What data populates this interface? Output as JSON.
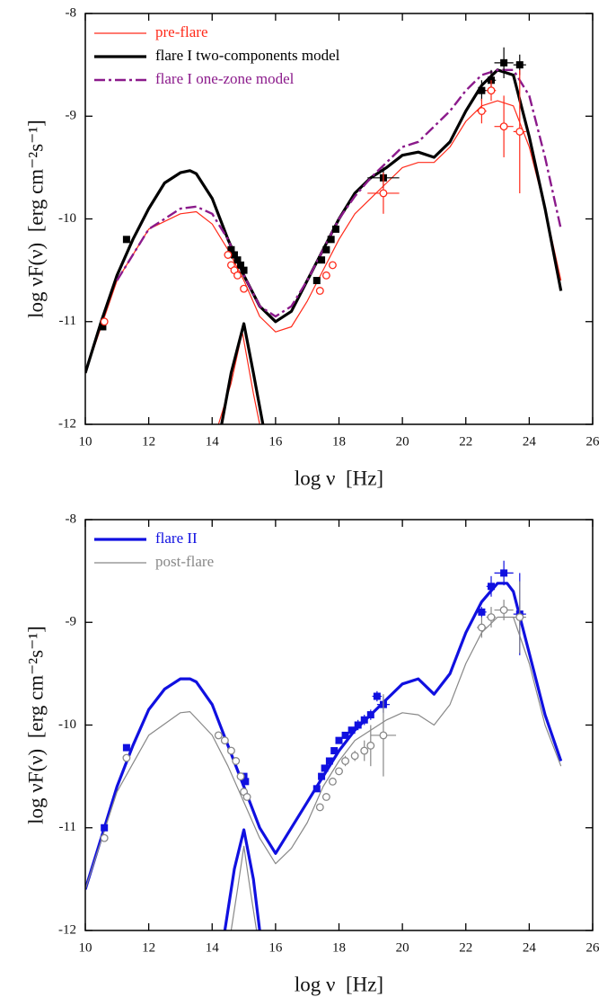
{
  "chart_data": [
    {
      "type": "line",
      "xlabel": "log ν  [Hz]",
      "ylabel": "log νF(ν)  [erg cm⁻²s⁻¹]",
      "xlim": [
        10,
        26
      ],
      "ylim": [
        -12,
        -8
      ],
      "xticks": [
        10,
        12,
        14,
        16,
        18,
        20,
        22,
        24,
        26
      ],
      "yticks": [
        -12,
        -11,
        -10,
        -9,
        -8
      ],
      "legend": "upper left",
      "series": [
        {
          "name": "pre-flare",
          "color": "#ff2a1a",
          "width": 1.2,
          "style": "solid",
          "x": [
            10,
            11,
            12,
            13,
            13.5,
            14,
            14.5,
            15,
            15.5,
            16,
            16.5,
            17,
            17.5,
            18,
            18.5,
            19,
            19.5,
            20,
            20.5,
            21,
            21.5,
            22,
            22.5,
            23,
            23.5,
            24,
            24.5,
            25,
            null,
            14.2,
            14.6,
            14.95,
            15.3,
            15.5
          ],
          "values": [
            -11.5,
            -10.6,
            -10.1,
            -9.95,
            -9.93,
            -10.05,
            -10.3,
            -10.6,
            -10.95,
            -11.1,
            -11.05,
            -10.8,
            -10.5,
            -10.2,
            -9.95,
            -9.8,
            -9.65,
            -9.5,
            -9.45,
            -9.45,
            -9.3,
            -9.05,
            -8.9,
            -8.85,
            -8.9,
            -9.3,
            -9.9,
            -10.6,
            null,
            -12,
            -11.6,
            -11.1,
            -11.7,
            -12
          ]
        },
        {
          "name": "flare I two-components model",
          "color": "#000000",
          "width": 3.2,
          "style": "solid",
          "x": [
            10,
            10.5,
            11,
            11.5,
            12,
            12.5,
            13,
            13.3,
            13.5,
            14,
            14.5,
            15,
            15.5,
            16,
            16.5,
            17,
            17.5,
            18,
            18.5,
            19,
            19.5,
            20,
            20.5,
            21,
            21.5,
            22,
            22.5,
            23,
            23.5,
            24,
            24.5,
            25,
            null,
            14.3,
            14.6,
            15,
            15.3,
            15.6
          ],
          "values": [
            -11.5,
            -11.0,
            -10.55,
            -10.2,
            -9.9,
            -9.65,
            -9.55,
            -9.53,
            -9.56,
            -9.8,
            -10.2,
            -10.55,
            -10.85,
            -11.0,
            -10.9,
            -10.6,
            -10.3,
            -10.0,
            -9.75,
            -9.6,
            -9.5,
            -9.38,
            -9.35,
            -9.4,
            -9.25,
            -8.95,
            -8.7,
            -8.55,
            -8.6,
            -9.2,
            -9.9,
            -10.7,
            null,
            -12,
            -11.5,
            -11.02,
            -11.5,
            -12
          ]
        },
        {
          "name": "flare I one-zone model",
          "color": "#8b1a8b",
          "width": 2.4,
          "style": "dashdot",
          "x": [
            11,
            12,
            13,
            13.5,
            14,
            14.5,
            15,
            15.5,
            16,
            16.5,
            17,
            17.5,
            18,
            18.5,
            19,
            19.5,
            20,
            20.5,
            21,
            21.5,
            22,
            22.5,
            23,
            23.5,
            24,
            24.5,
            25
          ],
          "values": [
            -10.6,
            -10.1,
            -9.9,
            -9.88,
            -9.95,
            -10.2,
            -10.55,
            -10.85,
            -10.95,
            -10.85,
            -10.6,
            -10.3,
            -10.0,
            -9.78,
            -9.6,
            -9.45,
            -9.3,
            -9.25,
            -9.1,
            -8.95,
            -8.75,
            -8.6,
            -8.55,
            -8.55,
            -8.8,
            -9.4,
            -10.1
          ]
        },
        {
          "marker": "square",
          "color": "#000000",
          "fill": "#000000",
          "x": [
            10.55,
            11.3,
            14.6,
            14.7,
            14.8,
            14.9,
            15.0,
            17.3,
            17.45,
            17.6,
            17.75,
            17.9,
            19.4,
            22.5,
            22.8,
            23.2,
            23.7
          ],
          "values": [
            -11.05,
            -10.2,
            -10.3,
            -10.35,
            -10.4,
            -10.45,
            -10.5,
            -10.6,
            -10.4,
            -10.3,
            -10.2,
            -10.1,
            -9.6,
            -8.75,
            -8.65,
            -8.48,
            -8.5
          ],
          "xerr": [
            0,
            0,
            0,
            0,
            0,
            0,
            0,
            0,
            0,
            0,
            0,
            0,
            0.5,
            0.15,
            0.15,
            0.3,
            0.2
          ],
          "yerr": [
            0.03,
            0.03,
            0.03,
            0.03,
            0.03,
            0.03,
            0.03,
            0.03,
            0.03,
            0.03,
            0.03,
            0.03,
            0.1,
            0.1,
            0.1,
            0.15,
            0.1
          ]
        },
        {
          "marker": "circle",
          "color": "#ff2a1a",
          "fill": "#ffffff",
          "x": [
            10.6,
            14.5,
            14.6,
            14.7,
            14.8,
            15.0,
            17.4,
            17.6,
            17.8,
            19.4,
            22.5,
            22.8,
            23.2,
            23.7
          ],
          "values": [
            -11.0,
            -10.35,
            -10.45,
            -10.5,
            -10.55,
            -10.68,
            -10.7,
            -10.55,
            -10.45,
            -9.75,
            -8.95,
            -8.75,
            -9.1,
            -9.15
          ],
          "xerr": [
            0,
            0,
            0,
            0,
            0,
            0,
            0,
            0,
            0,
            0.5,
            0.15,
            0.15,
            0.3,
            0.2
          ],
          "yerr": [
            0.03,
            0.03,
            0.03,
            0.03,
            0.03,
            0.03,
            0.03,
            0.03,
            0.03,
            0.2,
            0.12,
            0.1,
            0.3,
            0.6
          ]
        }
      ]
    },
    {
      "type": "line",
      "xlabel": "log ν  [Hz]",
      "ylabel": "log νF(ν)  [erg cm⁻²s⁻¹]",
      "xlim": [
        10,
        26
      ],
      "ylim": [
        -12,
        -8
      ],
      "xticks": [
        10,
        12,
        14,
        16,
        18,
        20,
        22,
        24,
        26
      ],
      "yticks": [
        -12,
        -11,
        -10,
        -9,
        -8
      ],
      "legend": "upper left",
      "series": [
        {
          "name": "flare II",
          "color": "#1010e0",
          "width": 3.2,
          "style": "solid",
          "x": [
            10,
            10.5,
            11,
            11.5,
            12,
            12.5,
            13,
            13.3,
            13.5,
            14,
            14.5,
            15,
            15.5,
            16,
            16.5,
            17,
            17.5,
            18,
            18.5,
            19,
            19.5,
            20,
            20.5,
            21,
            21.5,
            22,
            22.5,
            23,
            23.3,
            23.5,
            24,
            24.5,
            25,
            null,
            14.4,
            14.7,
            15,
            15.3,
            15.5
          ],
          "values": [
            -11.6,
            -11.1,
            -10.6,
            -10.2,
            -9.85,
            -9.65,
            -9.55,
            -9.55,
            -9.58,
            -9.8,
            -10.2,
            -10.6,
            -11.0,
            -11.25,
            -11.0,
            -10.75,
            -10.5,
            -10.25,
            -10.05,
            -9.9,
            -9.75,
            -9.6,
            -9.55,
            -9.7,
            -9.5,
            -9.1,
            -8.8,
            -8.62,
            -8.62,
            -8.7,
            -9.3,
            -9.9,
            -10.35,
            null,
            -12,
            -11.4,
            -11.02,
            -11.5,
            -12
          ]
        },
        {
          "name": "post-flare",
          "color": "#888888",
          "width": 1.2,
          "style": "solid",
          "x": [
            10,
            11,
            12,
            13,
            13.3,
            14,
            14.5,
            15,
            15.5,
            16,
            16.5,
            17,
            17.5,
            18,
            18.5,
            19,
            19.5,
            20,
            20.5,
            21,
            21.5,
            22,
            22.5,
            23,
            23.5,
            24,
            24.5,
            25,
            null,
            14.6,
            14.8,
            15,
            15.2,
            15.4
          ],
          "values": [
            -11.6,
            -10.65,
            -10.1,
            -9.88,
            -9.87,
            -10.1,
            -10.4,
            -10.75,
            -11.1,
            -11.35,
            -11.2,
            -10.95,
            -10.6,
            -10.35,
            -10.15,
            -10.05,
            -9.95,
            -9.88,
            -9.9,
            -10.0,
            -9.8,
            -9.4,
            -9.1,
            -8.95,
            -8.95,
            -9.4,
            -10.0,
            -10.4,
            null,
            -12,
            -11.6,
            -11.18,
            -11.6,
            -12
          ]
        },
        {
          "marker": "square",
          "color": "#1010e0",
          "fill": "#1010e0",
          "x": [
            10.6,
            11.3,
            15.0,
            15.05,
            17.3,
            17.45,
            17.55,
            17.7,
            17.85,
            18.0,
            18.2,
            18.4,
            18.6,
            18.8,
            19.0,
            19.2,
            19.4,
            22.5,
            22.8,
            23.2,
            23.7
          ],
          "values": [
            -11.0,
            -10.22,
            -10.5,
            -10.55,
            -10.62,
            -10.5,
            -10.42,
            -10.35,
            -10.25,
            -10.15,
            -10.1,
            -10.05,
            -10.0,
            -9.95,
            -9.9,
            -9.72,
            -9.8,
            -8.9,
            -8.65,
            -8.52,
            -8.92
          ],
          "xerr": [
            0,
            0,
            0,
            0,
            0,
            0,
            0,
            0,
            0,
            0,
            0,
            0,
            0,
            0,
            0,
            0.15,
            0.2,
            0.15,
            0.15,
            0.3,
            0.2
          ],
          "yerr": [
            0.03,
            0.03,
            0.03,
            0.03,
            0.03,
            0.03,
            0.03,
            0.03,
            0.03,
            0.03,
            0.03,
            0.03,
            0.05,
            0.05,
            0.05,
            0.05,
            0.08,
            0.05,
            0.1,
            0.12,
            0.4
          ]
        },
        {
          "marker": "circle",
          "color": "#888888",
          "fill": "#ffffff",
          "x": [
            10.6,
            11.3,
            14.2,
            14.4,
            14.6,
            14.75,
            14.9,
            15.0,
            15.1,
            17.4,
            17.6,
            17.8,
            18.0,
            18.2,
            18.5,
            18.8,
            19.0,
            19.4,
            22.5,
            22.8,
            23.2,
            23.7
          ],
          "values": [
            -11.1,
            -10.32,
            -10.1,
            -10.15,
            -10.25,
            -10.35,
            -10.5,
            -10.65,
            -10.7,
            -10.8,
            -10.7,
            -10.55,
            -10.45,
            -10.35,
            -10.3,
            -10.25,
            -10.2,
            -10.1,
            -9.05,
            -8.95,
            -8.88,
            -8.95
          ],
          "xerr": [
            0,
            0,
            0,
            0,
            0,
            0,
            0,
            0,
            0,
            0,
            0,
            0,
            0,
            0,
            0,
            0,
            0,
            0.4,
            0.15,
            0.15,
            0.3,
            0.2
          ],
          "yerr": [
            0.03,
            0.03,
            0.03,
            0.03,
            0.03,
            0.03,
            0.03,
            0.03,
            0.03,
            0.03,
            0.03,
            0.03,
            0.03,
            0.05,
            0.05,
            0.1,
            0.2,
            0.4,
            0.1,
            0.1,
            0.1,
            0.35
          ]
        }
      ]
    }
  ]
}
